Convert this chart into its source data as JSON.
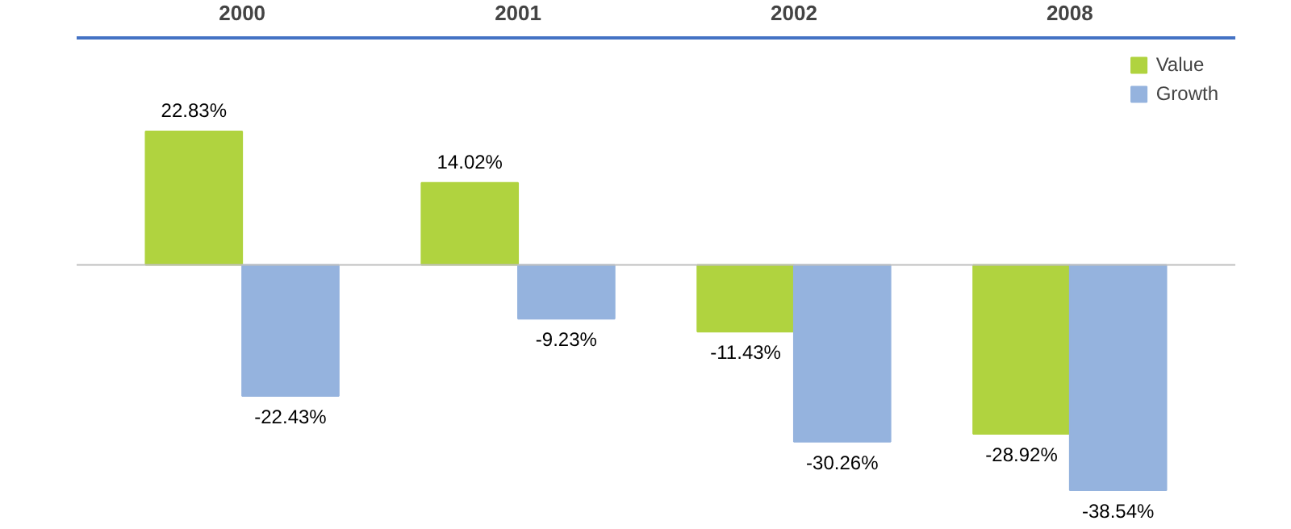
{
  "chart_data": {
    "type": "bar",
    "categories": [
      "2000",
      "2001",
      "2002",
      "2008"
    ],
    "series": [
      {
        "name": "Value",
        "color": "#b0d33f",
        "values": [
          22.83,
          14.02,
          -11.43,
          -28.92
        ],
        "value_labels": [
          "22.83%",
          "14.02%",
          "-11.43%",
          "-28.92%"
        ]
      },
      {
        "name": "Growth",
        "color": "#95b3de",
        "values": [
          -22.43,
          -9.23,
          -30.26,
          -38.54
        ],
        "value_labels": [
          "-22.43%",
          "-9.23%",
          "-30.26%",
          "-38.54%"
        ]
      }
    ],
    "legend": "top right",
    "grid": false
  }
}
